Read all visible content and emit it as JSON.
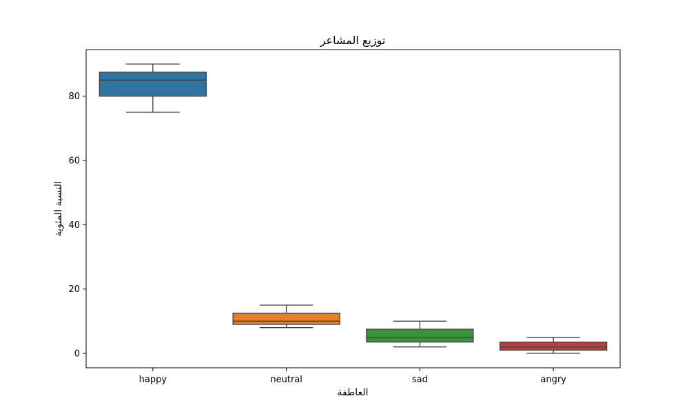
{
  "chart_data": {
    "type": "box",
    "title": "توزيع المشاعر",
    "xlabel": "العاطفة",
    "ylabel": "النسبة المئوية",
    "ylim": [
      -4.5,
      94.5
    ],
    "yticks": [
      0,
      20,
      40,
      60,
      80
    ],
    "grid": false,
    "legend": "none",
    "categories": [
      "happy",
      "neutral",
      "sad",
      "angry"
    ],
    "boxes": [
      {
        "category": "happy",
        "whisker_low": 75,
        "q1": 80,
        "median": 85,
        "q3": 87.5,
        "whisker_high": 90,
        "color": "#3274a1"
      },
      {
        "category": "neutral",
        "whisker_low": 8,
        "q1": 9,
        "median": 10,
        "q3": 12.5,
        "whisker_high": 15,
        "color": "#e1812c"
      },
      {
        "category": "sad",
        "whisker_low": 2,
        "q1": 3.5,
        "median": 5,
        "q3": 7.5,
        "whisker_high": 10,
        "color": "#3a923a"
      },
      {
        "category": "angry",
        "whisker_low": 0,
        "q1": 1,
        "median": 2,
        "q3": 3.5,
        "whisker_high": 5,
        "color": "#c03d3e"
      }
    ]
  }
}
